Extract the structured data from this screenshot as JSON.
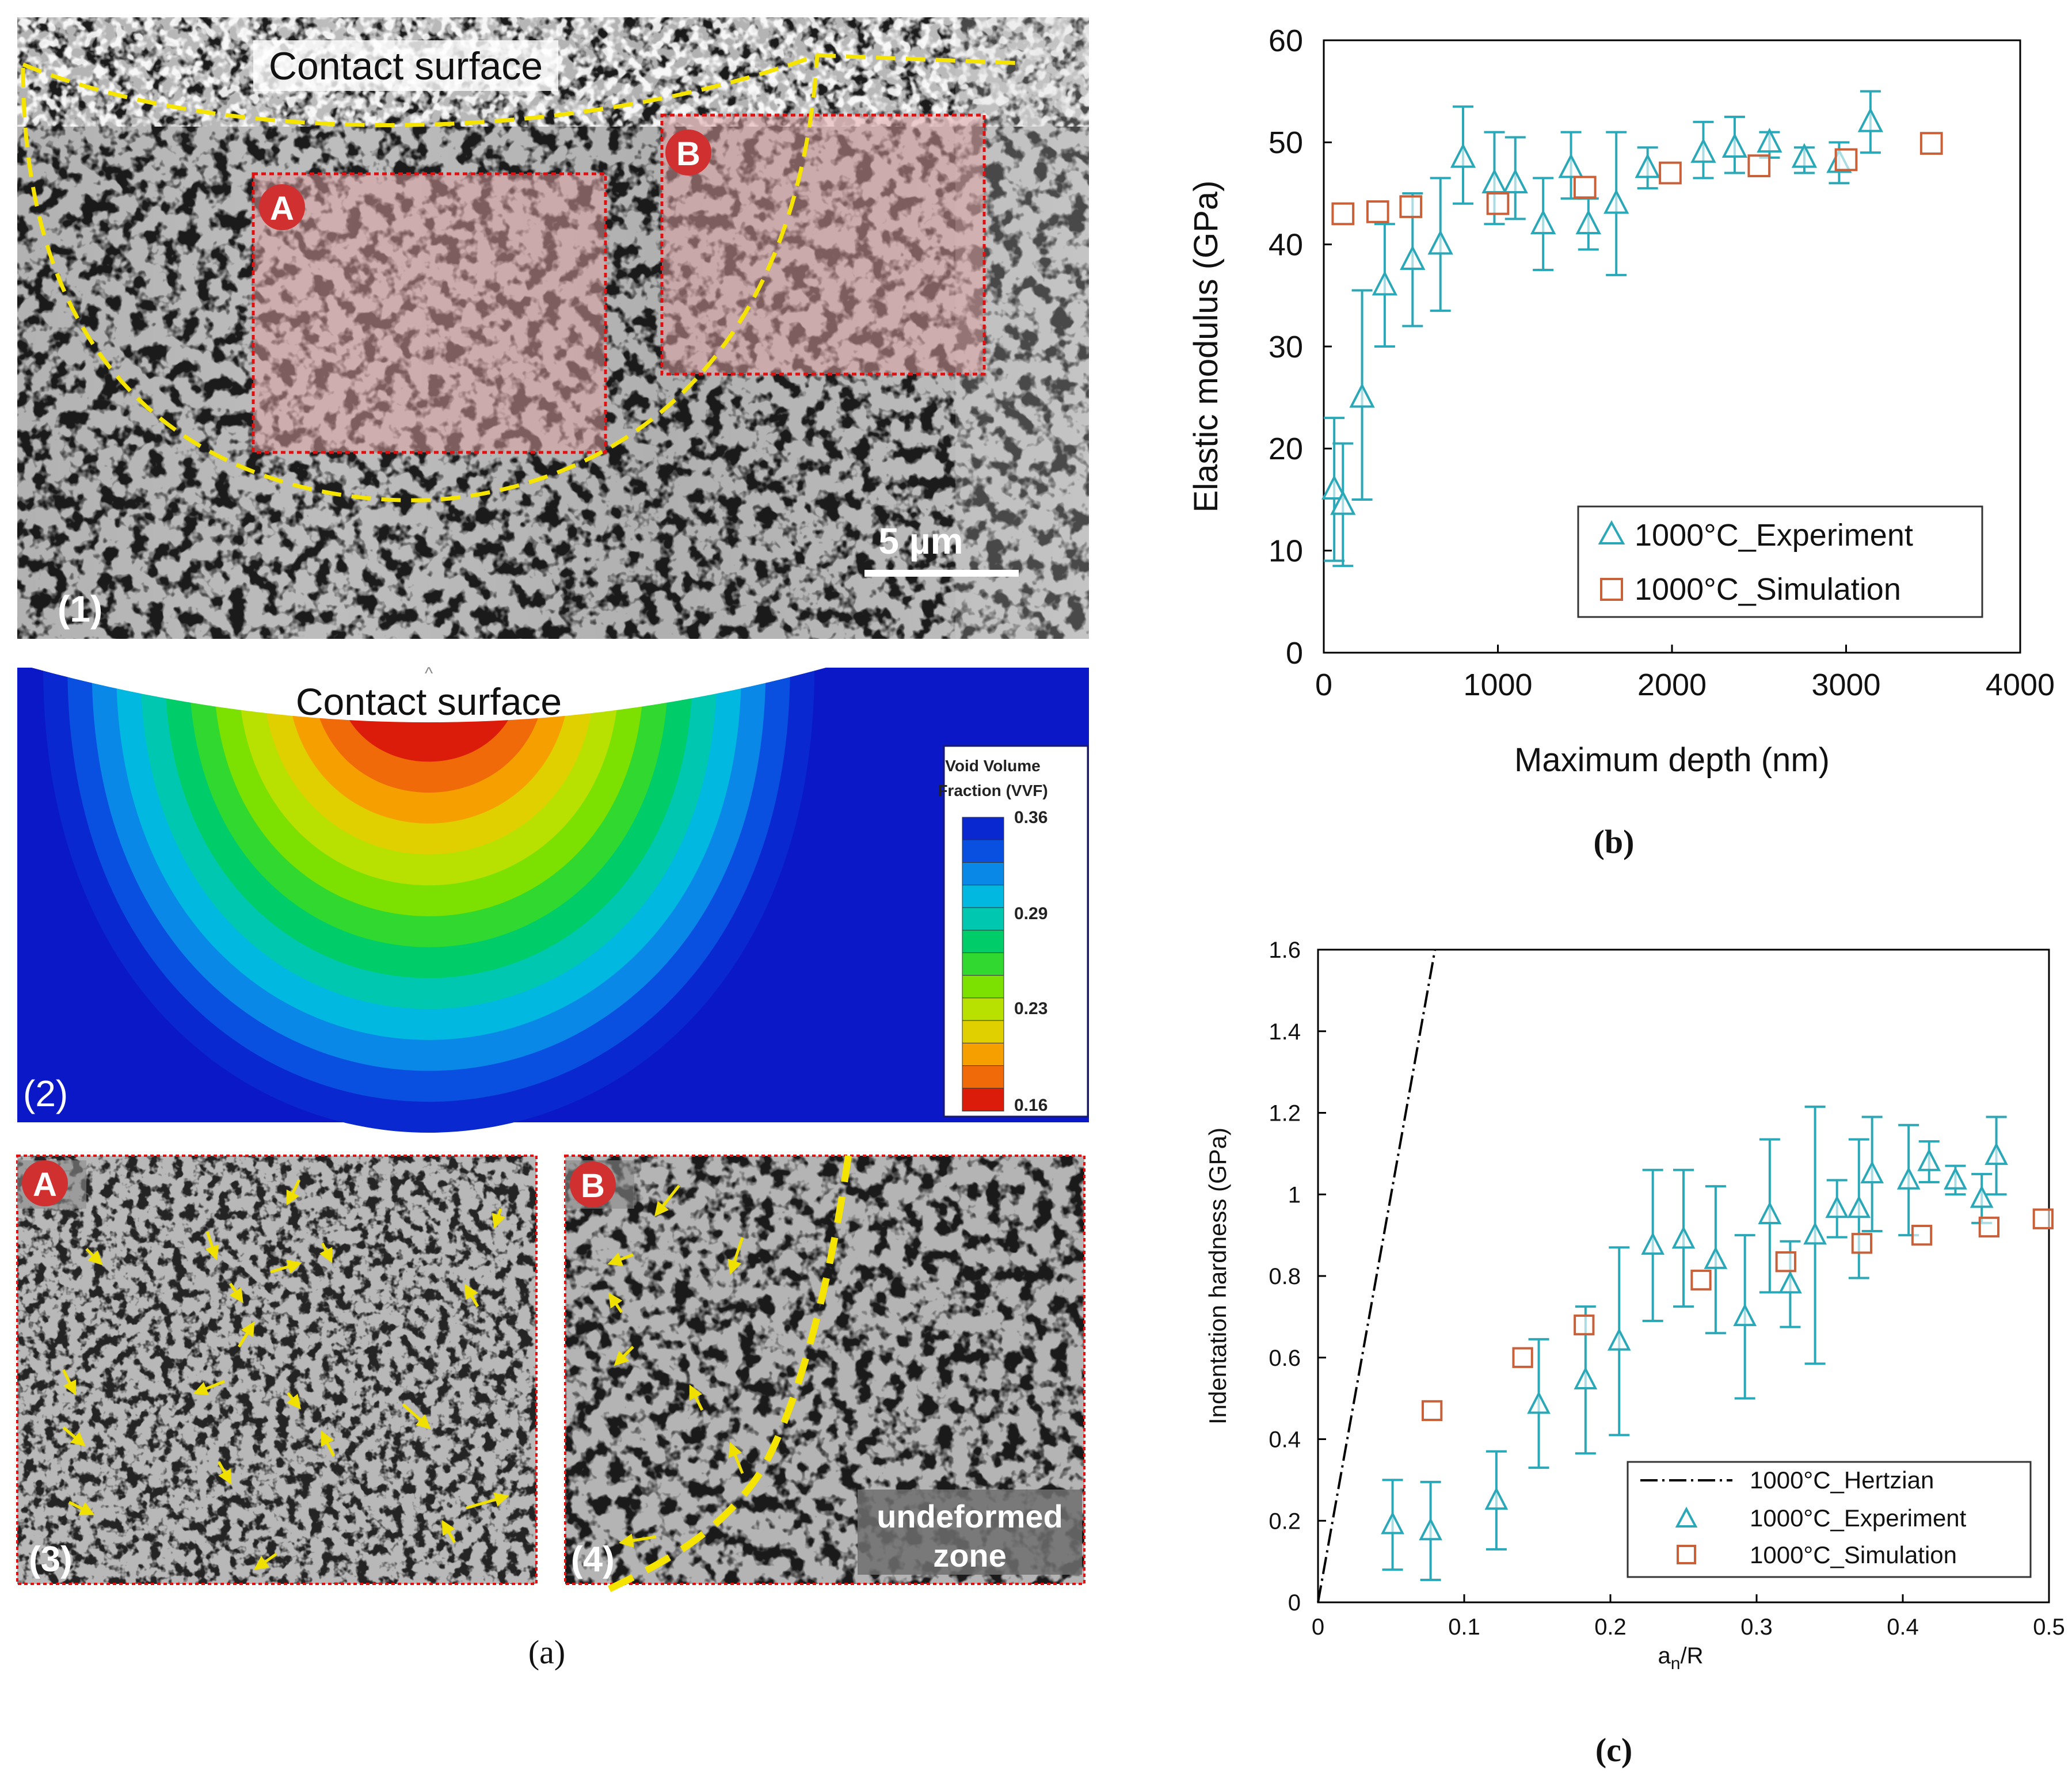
{
  "panel_a": {
    "caption": "(a)",
    "sub1": {
      "label": "(1)",
      "contact_label": "Contact surface",
      "region_a": "A",
      "region_b": "B",
      "scale_bar": "5 µm"
    },
    "sub2": {
      "label": "(2)",
      "contact_label": "Contact surface",
      "legend_title_1": "Void Volume",
      "legend_title_2": "Fraction (VVF)",
      "legend_ticks": [
        "0.36",
        "0.29",
        "0.23",
        "0.16"
      ],
      "colors": {
        "background": "#0a18c8",
        "bands": [
          "#dc1c0a",
          "#f06a0a",
          "#f5a000",
          "#e0d000",
          "#b8e000",
          "#7ce000",
          "#30d830",
          "#00cc6a",
          "#00c8b0",
          "#00b8e0",
          "#0a88e8",
          "#0a50e0",
          "#0a28d0"
        ]
      }
    },
    "sub3": {
      "label": "(3)",
      "region": "A"
    },
    "sub4": {
      "label": "(4)",
      "region": "B",
      "zone_line1": "undeformed",
      "zone_line2": "zone"
    }
  },
  "chart_data": [
    {
      "id": "b",
      "type": "scatter",
      "caption": "(b)",
      "xlabel": "Maximum depth (nm)",
      "ylabel": "Elastic modulus (GPa)",
      "xlim": [
        0,
        4000
      ],
      "ylim": [
        0,
        60
      ],
      "xticks": [
        "0",
        "1000",
        "2000",
        "3000",
        "4000"
      ],
      "yticks": [
        "0",
        "10",
        "20",
        "30",
        "40",
        "50",
        "60"
      ],
      "legend_position": "bottom-right",
      "series": [
        {
          "name": "1000°C_Experiment",
          "marker": "triangle",
          "color": "#2aa8b8",
          "points": [
            {
              "x": 60,
              "y": 16,
              "lo": 9,
              "hi": 23
            },
            {
              "x": 110,
              "y": 14.5,
              "lo": 8.5,
              "hi": 20.5
            },
            {
              "x": 220,
              "y": 25,
              "lo": 15,
              "hi": 35.5
            },
            {
              "x": 350,
              "y": 36,
              "lo": 30,
              "hi": 42
            },
            {
              "x": 510,
              "y": 38.5,
              "lo": 32,
              "hi": 45
            },
            {
              "x": 670,
              "y": 40,
              "lo": 33.5,
              "hi": 46.5
            },
            {
              "x": 800,
              "y": 48.5,
              "lo": 44,
              "hi": 53.5
            },
            {
              "x": 980,
              "y": 46,
              "lo": 42,
              "hi": 51
            },
            {
              "x": 1100,
              "y": 46,
              "lo": 42.5,
              "hi": 50.5
            },
            {
              "x": 1260,
              "y": 42,
              "lo": 37.5,
              "hi": 46.5
            },
            {
              "x": 1420,
              "y": 47.5,
              "lo": 44.5,
              "hi": 51
            },
            {
              "x": 1520,
              "y": 42,
              "lo": 39.5,
              "hi": 44.5
            },
            {
              "x": 1680,
              "y": 44,
              "lo": 37,
              "hi": 51
            },
            {
              "x": 1860,
              "y": 47.5,
              "lo": 45.5,
              "hi": 49.5
            },
            {
              "x": 2180,
              "y": 49,
              "lo": 46.5,
              "hi": 52
            },
            {
              "x": 2360,
              "y": 49.5,
              "lo": 47,
              "hi": 52.5
            },
            {
              "x": 2560,
              "y": 50,
              "lo": 48.5,
              "hi": 51
            },
            {
              "x": 2760,
              "y": 48.5,
              "lo": 47,
              "hi": 49.5
            },
            {
              "x": 2960,
              "y": 48,
              "lo": 46,
              "hi": 50
            },
            {
              "x": 3140,
              "y": 52,
              "lo": 49,
              "hi": 55
            }
          ]
        },
        {
          "name": "1000°C_Simulation",
          "marker": "square",
          "color": "#c8603a",
          "points": [
            {
              "x": 110,
              "y": 43
            },
            {
              "x": 310,
              "y": 43.2
            },
            {
              "x": 500,
              "y": 43.7
            },
            {
              "x": 1000,
              "y": 44
            },
            {
              "x": 1500,
              "y": 45.6
            },
            {
              "x": 1990,
              "y": 47
            },
            {
              "x": 2500,
              "y": 47.7
            },
            {
              "x": 3000,
              "y": 48.3
            },
            {
              "x": 3490,
              "y": 49.9
            }
          ]
        }
      ]
    },
    {
      "id": "c",
      "type": "scatter",
      "caption": "(c)",
      "xlabel_main": "a",
      "xlabel_sub": "n",
      "xlabel_rest": "/R",
      "ylabel": "Indentation hardness (GPa)",
      "xlim": [
        0,
        0.5
      ],
      "ylim": [
        0,
        1.6
      ],
      "xticks": [
        "0",
        "0.1",
        "0.2",
        "0.3",
        "0.4",
        "0.5"
      ],
      "yticks": [
        "0",
        "0.2",
        "0.4",
        "0.6",
        "0.8",
        "1",
        "1.2",
        "1.4",
        "1.6"
      ],
      "legend_position": "bottom-right",
      "series": [
        {
          "name": "1000°C_Hertzian",
          "marker": "dash-dot line",
          "color": "#000000",
          "points": [
            {
              "x": 0,
              "y": 0
            },
            {
              "x": 0.08,
              "y": 1.6
            }
          ]
        },
        {
          "name": "1000°C_Experiment",
          "marker": "triangle",
          "color": "#2aa8b8",
          "points": [
            {
              "x": 0.051,
              "y": 0.19,
              "lo": 0.08,
              "hi": 0.3
            },
            {
              "x": 0.077,
              "y": 0.175,
              "lo": 0.055,
              "hi": 0.295
            },
            {
              "x": 0.122,
              "y": 0.25,
              "lo": 0.13,
              "hi": 0.37
            },
            {
              "x": 0.151,
              "y": 0.485,
              "lo": 0.33,
              "hi": 0.645
            },
            {
              "x": 0.183,
              "y": 0.545,
              "lo": 0.365,
              "hi": 0.725
            },
            {
              "x": 0.206,
              "y": 0.64,
              "lo": 0.41,
              "hi": 0.87
            },
            {
              "x": 0.229,
              "y": 0.875,
              "lo": 0.69,
              "hi": 1.06
            },
            {
              "x": 0.25,
              "y": 0.89,
              "lo": 0.725,
              "hi": 1.06
            },
            {
              "x": 0.272,
              "y": 0.84,
              "lo": 0.66,
              "hi": 1.02
            },
            {
              "x": 0.292,
              "y": 0.7,
              "lo": 0.5,
              "hi": 0.9
            },
            {
              "x": 0.309,
              "y": 0.95,
              "lo": 0.76,
              "hi": 1.135
            },
            {
              "x": 0.323,
              "y": 0.78,
              "lo": 0.675,
              "hi": 0.885
            },
            {
              "x": 0.34,
              "y": 0.9,
              "lo": 0.585,
              "hi": 1.215
            },
            {
              "x": 0.355,
              "y": 0.965,
              "lo": 0.895,
              "hi": 1.035
            },
            {
              "x": 0.37,
              "y": 0.965,
              "lo": 0.795,
              "hi": 1.135
            },
            {
              "x": 0.379,
              "y": 1.05,
              "lo": 0.91,
              "hi": 1.19
            },
            {
              "x": 0.404,
              "y": 1.035,
              "lo": 0.9,
              "hi": 1.17
            },
            {
              "x": 0.418,
              "y": 1.08,
              "lo": 1.03,
              "hi": 1.13
            },
            {
              "x": 0.436,
              "y": 1.035,
              "lo": 1.0,
              "hi": 1.07
            },
            {
              "x": 0.454,
              "y": 0.99,
              "lo": 0.93,
              "hi": 1.05
            },
            {
              "x": 0.464,
              "y": 1.095,
              "lo": 1.0,
              "hi": 1.19
            }
          ]
        },
        {
          "name": "1000°C_Simulation",
          "marker": "square",
          "color": "#c8603a",
          "points": [
            {
              "x": 0.078,
              "y": 0.47
            },
            {
              "x": 0.14,
              "y": 0.6
            },
            {
              "x": 0.182,
              "y": 0.68
            },
            {
              "x": 0.262,
              "y": 0.79
            },
            {
              "x": 0.32,
              "y": 0.835
            },
            {
              "x": 0.372,
              "y": 0.88
            },
            {
              "x": 0.413,
              "y": 0.9
            },
            {
              "x": 0.459,
              "y": 0.92
            },
            {
              "x": 0.496,
              "y": 0.94
            }
          ]
        }
      ]
    }
  ]
}
